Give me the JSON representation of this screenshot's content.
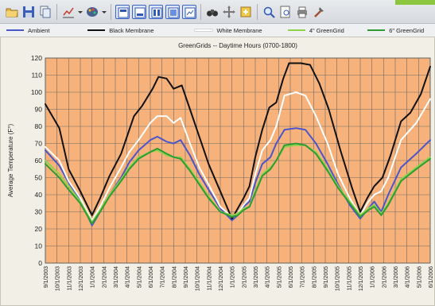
{
  "toolbar": {
    "buttons": [
      {
        "icon": "open-folder-icon"
      },
      {
        "icon": "save-disk-icon"
      },
      {
        "icon": "copy-icon"
      },
      {
        "icon": "chart-type-icon",
        "dropdown": true
      },
      {
        "icon": "palette-icon",
        "dropdown": true
      },
      {
        "icon": "layout-1-icon",
        "boxed": true
      },
      {
        "icon": "layout-2-icon",
        "boxed": true
      },
      {
        "icon": "layout-3-icon",
        "boxed": true
      },
      {
        "icon": "layout-4-icon",
        "boxed": true
      },
      {
        "icon": "layout-5-icon",
        "boxed": true
      },
      {
        "icon": "binoculars-icon"
      },
      {
        "icon": "pan-cross-icon"
      },
      {
        "icon": "import-icon"
      },
      {
        "icon": "zoom-icon"
      },
      {
        "icon": "print-preview-icon"
      },
      {
        "icon": "print-icon"
      },
      {
        "icon": "tools-icon"
      }
    ]
  },
  "colors": {
    "plot_bg": "#f7b27c",
    "grid": "#6e6a64",
    "ambient": "#4b56c8",
    "black_membrane": "#111111",
    "white_membrane": "#ffffff",
    "green_4": "#8fd24b",
    "green_6": "#2e9b33"
  },
  "chart_data": {
    "type": "line",
    "title": "GreenGrids -- Daytime Hours (0700-1800)",
    "ylabel": "Average Temperature (F°)",
    "xlabel": "",
    "ylim": [
      0,
      120
    ],
    "yticks": [
      0,
      10,
      20,
      30,
      40,
      50,
      60,
      70,
      80,
      90,
      100,
      110,
      120
    ],
    "grid": true,
    "legend_position": "top",
    "x": [
      "9/1/2003",
      "10/1/2003",
      "11/1/2003",
      "12/1/2003",
      "1/1/2004",
      "2/1/2004",
      "3/1/2004",
      "4/1/2004",
      "5/1/2004",
      "6/1/2004",
      "7/1/2004",
      "8/1/2004",
      "9/1/2004",
      "10/1/2004",
      "11/1/2004",
      "12/1/2004",
      "1/1/2005",
      "2/1/2005",
      "3/1/2005",
      "4/1/2005",
      "5/1/2005",
      "6/1/2005",
      "7/1/2005",
      "8/1/2005",
      "9/1/2005",
      "10/1/2005",
      "11/1/2005",
      "12/1/2005",
      "1/1/2006",
      "2/1/2006",
      "3/1/2006",
      "4/1/2006",
      "5/1/2006",
      "6/1/2006"
    ],
    "series": [
      {
        "name": "Ambient",
        "color": "#4b56c8",
        "points": [
          [
            0,
            66
          ],
          [
            1.2,
            57
          ],
          [
            2,
            47
          ],
          [
            3,
            37
          ],
          [
            4,
            22
          ],
          [
            4.7,
            30
          ],
          [
            5.5,
            40
          ],
          [
            6.5,
            50
          ],
          [
            7.2,
            59
          ],
          [
            8,
            66
          ],
          [
            9,
            72
          ],
          [
            9.6,
            74
          ],
          [
            10.4,
            71
          ],
          [
            11,
            70
          ],
          [
            11.6,
            72
          ],
          [
            12.4,
            63
          ],
          [
            13.2,
            52
          ],
          [
            14,
            43
          ],
          [
            15,
            32
          ],
          [
            16,
            25
          ],
          [
            16.5,
            28
          ],
          [
            17,
            33
          ],
          [
            17.5,
            36
          ],
          [
            18,
            47
          ],
          [
            18.6,
            58
          ],
          [
            19.3,
            62
          ],
          [
            19.8,
            70
          ],
          [
            20.5,
            78
          ],
          [
            21.5,
            79
          ],
          [
            22.3,
            78
          ],
          [
            23.2,
            70
          ],
          [
            24.2,
            58
          ],
          [
            25.1,
            46
          ],
          [
            26.1,
            34
          ],
          [
            27,
            26
          ],
          [
            27.7,
            32
          ],
          [
            28.2,
            36
          ],
          [
            28.8,
            30
          ],
          [
            29.4,
            40
          ],
          [
            30.5,
            56
          ],
          [
            31.8,
            64
          ],
          [
            33,
            72
          ]
        ]
      },
      {
        "name": "Black Membrane",
        "color": "#111111",
        "points": [
          [
            0,
            93
          ],
          [
            1.2,
            79
          ],
          [
            2,
            55
          ],
          [
            3,
            42
          ],
          [
            4,
            28
          ],
          [
            4.7,
            38
          ],
          [
            5.5,
            51
          ],
          [
            6.5,
            64
          ],
          [
            7.2,
            78
          ],
          [
            7.6,
            86
          ],
          [
            8.3,
            92
          ],
          [
            9.2,
            102
          ],
          [
            9.7,
            109
          ],
          [
            10.4,
            108
          ],
          [
            11,
            102
          ],
          [
            11.7,
            104
          ],
          [
            12.4,
            90
          ],
          [
            13.2,
            74
          ],
          [
            14,
            58
          ],
          [
            15,
            42
          ],
          [
            16,
            26
          ],
          [
            16.5,
            32
          ],
          [
            17,
            38
          ],
          [
            17.5,
            45
          ],
          [
            18,
            62
          ],
          [
            18.6,
            78
          ],
          [
            19.2,
            91
          ],
          [
            19.8,
            94
          ],
          [
            20.4,
            108
          ],
          [
            20.9,
            117
          ],
          [
            21.9,
            117
          ],
          [
            22.7,
            116
          ],
          [
            23.5,
            105
          ],
          [
            24.3,
            90
          ],
          [
            25.3,
            66
          ],
          [
            26.3,
            44
          ],
          [
            27,
            30
          ],
          [
            27.6,
            38
          ],
          [
            28.2,
            45
          ],
          [
            28.9,
            50
          ],
          [
            29.6,
            63
          ],
          [
            30.5,
            83
          ],
          [
            31.3,
            88
          ],
          [
            32.2,
            99
          ],
          [
            33,
            115
          ]
        ]
      },
      {
        "name": "White Membrane",
        "color": "#ffffff",
        "points": [
          [
            0,
            68
          ],
          [
            1.2,
            60
          ],
          [
            2,
            48
          ],
          [
            3,
            38
          ],
          [
            4,
            25
          ],
          [
            4.7,
            33
          ],
          [
            5.5,
            44
          ],
          [
            6.5,
            56
          ],
          [
            7.2,
            65
          ],
          [
            8,
            72
          ],
          [
            9,
            82
          ],
          [
            9.6,
            86
          ],
          [
            10.4,
            86
          ],
          [
            11,
            82
          ],
          [
            11.6,
            85
          ],
          [
            12.4,
            70
          ],
          [
            13.2,
            56
          ],
          [
            14,
            46
          ],
          [
            15,
            33
          ],
          [
            16,
            27
          ],
          [
            16.5,
            29
          ],
          [
            17,
            34
          ],
          [
            17.5,
            38
          ],
          [
            18,
            52
          ],
          [
            18.6,
            66
          ],
          [
            19.3,
            72
          ],
          [
            19.8,
            80
          ],
          [
            20.5,
            98
          ],
          [
            21.5,
            100
          ],
          [
            22.3,
            98
          ],
          [
            23.2,
            86
          ],
          [
            24.2,
            70
          ],
          [
            25.1,
            52
          ],
          [
            26.1,
            38
          ],
          [
            27,
            28
          ],
          [
            27.7,
            36
          ],
          [
            28.2,
            40
          ],
          [
            28.8,
            42
          ],
          [
            29.4,
            50
          ],
          [
            30.5,
            72
          ],
          [
            31.8,
            82
          ],
          [
            33,
            96
          ]
        ]
      },
      {
        "name": "4\" GreenGrid",
        "color": "#8fd24b",
        "points": [
          [
            0,
            60
          ],
          [
            1.2,
            52
          ],
          [
            2,
            45
          ],
          [
            3,
            36
          ],
          [
            4,
            24
          ],
          [
            4.7,
            31
          ],
          [
            5.5,
            40
          ],
          [
            6.5,
            49
          ],
          [
            7.2,
            56
          ],
          [
            8,
            62
          ],
          [
            9,
            65
          ],
          [
            9.6,
            66
          ],
          [
            10.4,
            63
          ],
          [
            11,
            62
          ],
          [
            11.6,
            62
          ],
          [
            12.4,
            55
          ],
          [
            13.2,
            47
          ],
          [
            14,
            39
          ],
          [
            15,
            30
          ],
          [
            16,
            28
          ],
          [
            16.5,
            29
          ],
          [
            17,
            32
          ],
          [
            17.5,
            33
          ],
          [
            18,
            42
          ],
          [
            18.6,
            52
          ],
          [
            19.3,
            56
          ],
          [
            19.8,
            60
          ],
          [
            20.5,
            68
          ],
          [
            21.5,
            69
          ],
          [
            22.3,
            69
          ],
          [
            23.2,
            65
          ],
          [
            24.2,
            55
          ],
          [
            25.1,
            45
          ],
          [
            26.1,
            36
          ],
          [
            27,
            28
          ],
          [
            27.7,
            32
          ],
          [
            28.2,
            34
          ],
          [
            28.8,
            29
          ],
          [
            29.4,
            35
          ],
          [
            30.5,
            49
          ],
          [
            31.8,
            56
          ],
          [
            33,
            62
          ]
        ]
      },
      {
        "name": "6\" GreenGrid",
        "color": "#2e9b33",
        "points": [
          [
            0,
            58
          ],
          [
            1.2,
            50
          ],
          [
            2,
            43
          ],
          [
            3,
            35
          ],
          [
            4,
            23
          ],
          [
            4.7,
            30
          ],
          [
            5.5,
            39
          ],
          [
            6.5,
            48
          ],
          [
            7.2,
            55
          ],
          [
            8,
            61
          ],
          [
            9,
            65
          ],
          [
            9.6,
            67
          ],
          [
            10.4,
            64
          ],
          [
            11,
            62
          ],
          [
            11.6,
            61
          ],
          [
            12.4,
            54
          ],
          [
            13.2,
            46
          ],
          [
            14,
            38
          ],
          [
            15,
            30
          ],
          [
            16,
            27
          ],
          [
            16.5,
            28
          ],
          [
            17,
            31
          ],
          [
            17.5,
            33
          ],
          [
            18,
            41
          ],
          [
            18.6,
            51
          ],
          [
            19.3,
            55
          ],
          [
            19.8,
            60
          ],
          [
            20.5,
            69
          ],
          [
            21.5,
            70
          ],
          [
            22.3,
            69
          ],
          [
            23.2,
            64
          ],
          [
            24.2,
            54
          ],
          [
            25.1,
            44
          ],
          [
            26.1,
            35
          ],
          [
            27,
            27
          ],
          [
            27.7,
            31
          ],
          [
            28.2,
            33
          ],
          [
            28.8,
            28
          ],
          [
            29.4,
            34
          ],
          [
            30.5,
            48
          ],
          [
            31.8,
            55
          ],
          [
            33,
            61
          ]
        ]
      }
    ]
  }
}
